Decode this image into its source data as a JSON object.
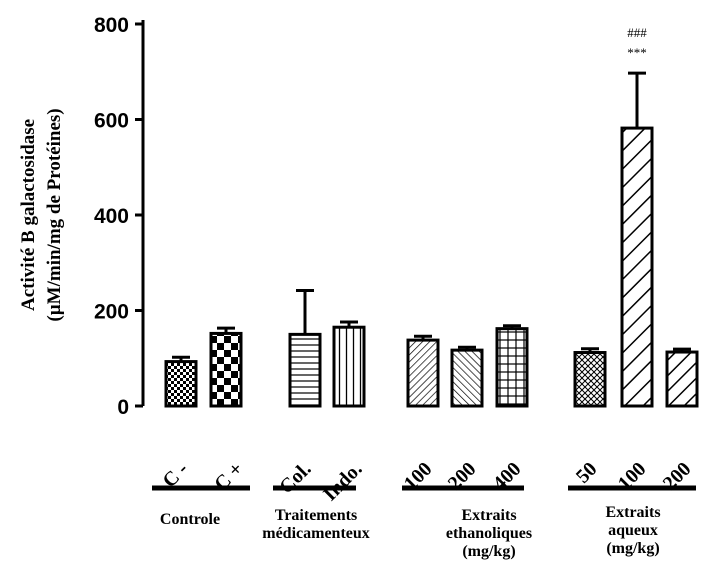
{
  "chart_data": {
    "type": "bar",
    "ylabel_line1": "Activité B galactosidase",
    "ylabel_line2": "(µM/min/mg de Protéines)",
    "ylim": [
      0,
      800
    ],
    "yticks": [
      0,
      200,
      400,
      600,
      800
    ],
    "grid": false,
    "categories": [
      "C -",
      "C +",
      "Col.",
      "Indo.",
      "100",
      "200",
      "400",
      "50",
      "100",
      "200"
    ],
    "values": [
      93,
      152,
      150,
      165,
      138,
      117,
      162,
      112,
      582,
      113
    ],
    "errors": [
      9,
      11,
      92,
      11,
      8,
      6,
      6,
      8,
      115,
      6
    ],
    "patterns": [
      "check-small",
      "check-large",
      "horizontal",
      "vertical",
      "diag-fine",
      "diag-back-fine",
      "grid",
      "crosshatch",
      "diag-wide",
      "diag-bold"
    ],
    "groups": [
      {
        "label_lines": [
          "Controle"
        ],
        "members": [
          0,
          1
        ]
      },
      {
        "label_lines": [
          "Traitements",
          "médicamenteux"
        ],
        "members": [
          2,
          3
        ]
      },
      {
        "label_lines": [
          "Extraits",
          "ethanoliques",
          "(mg/kg)"
        ],
        "members": [
          4,
          5,
          6
        ]
      },
      {
        "label_lines": [
          "Extraits",
          "aqueux",
          "(mg/kg)"
        ],
        "members": [
          7,
          8,
          9
        ]
      }
    ],
    "annotations": [
      {
        "bar": 8,
        "lines": [
          "###",
          "***"
        ]
      }
    ]
  }
}
